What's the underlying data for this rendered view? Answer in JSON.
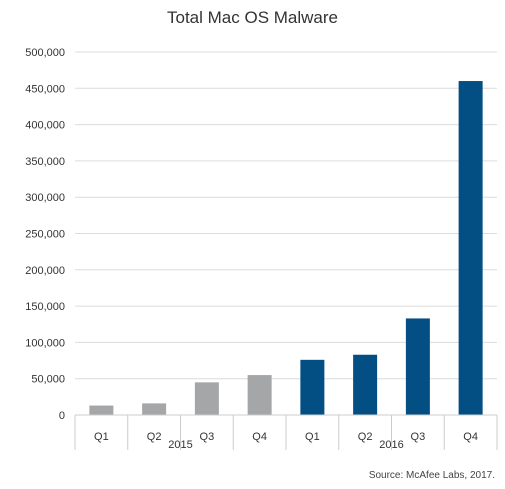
{
  "chart_data": {
    "type": "bar",
    "title": "Total Mac OS Malware",
    "source": "Source: McAfee Labs, 2017.",
    "ylim": [
      0,
      500000
    ],
    "yticks": [
      "0",
      "50,000",
      "100,000",
      "150,000",
      "200,000",
      "250,000",
      "300,000",
      "350,000",
      "400,000",
      "450,000",
      "500,000"
    ],
    "ytick_values": [
      0,
      50000,
      100000,
      150000,
      200000,
      250000,
      300000,
      350000,
      400000,
      450000,
      500000
    ],
    "grid": true,
    "groups": [
      {
        "label": "2015",
        "color": "#a5a6a8",
        "categories": [
          "Q1",
          "Q2",
          "Q3",
          "Q4"
        ],
        "values": [
          13000,
          16000,
          45000,
          55000
        ]
      },
      {
        "label": "2016",
        "color": "#034f84",
        "categories": [
          "Q1",
          "Q2",
          "Q3",
          "Q4"
        ],
        "values": [
          76000,
          83000,
          133000,
          460000
        ]
      }
    ]
  }
}
